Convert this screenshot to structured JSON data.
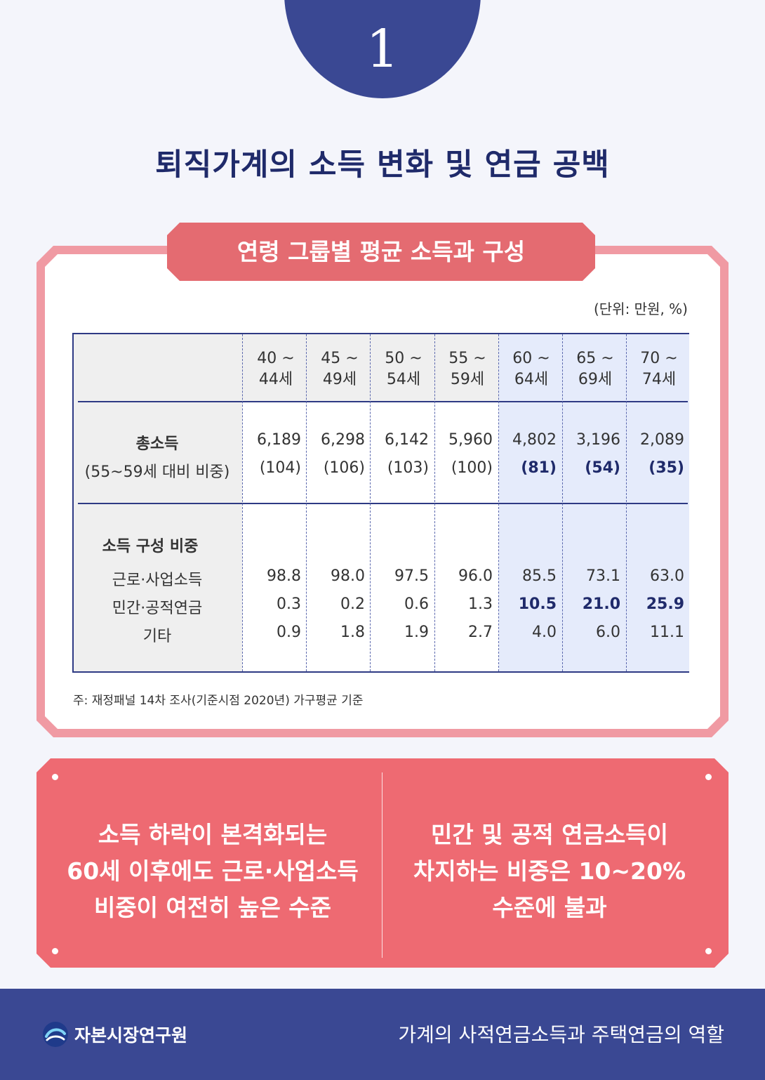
{
  "badge": {
    "number": "1"
  },
  "title": "퇴직가계의 소득 변화 및 연금 공백",
  "card": {
    "banner": "연령 그룹별 평균 소득과 구성",
    "unit": "(단위: 만원, %)",
    "table": {
      "columns": [
        [
          "40 ~",
          "44세"
        ],
        [
          "45 ~",
          "49세"
        ],
        [
          "50 ~",
          "54세"
        ],
        [
          "55 ~",
          "59세"
        ],
        [
          "60 ~",
          "64세"
        ],
        [
          "65 ~",
          "69세"
        ],
        [
          "70 ~",
          "74세"
        ]
      ],
      "total_label": "총소득",
      "ratio_label": "(55~59세 대비 비중)",
      "total": [
        "6,189",
        "6,298",
        "6,142",
        "5,960",
        "4,802",
        "3,196",
        "2,089"
      ],
      "ratio": [
        "(104)",
        "(106)",
        "(103)",
        "(100)",
        "(81)",
        "(54)",
        "(35)"
      ],
      "comp_label": "소득 구성 비중",
      "rows": [
        {
          "label": "근로·사업소득",
          "values": [
            "98.8",
            "98.0",
            "97.5",
            "96.0",
            "85.5",
            "73.1",
            "63.0"
          ]
        },
        {
          "label": "민간·공적연금",
          "values": [
            "0.3",
            "0.2",
            "0.6",
            "1.3",
            "10.5",
            "21.0",
            "25.9"
          ]
        },
        {
          "label": "기타",
          "values": [
            "0.9",
            "1.8",
            "1.9",
            "2.7",
            "4.0",
            "6.0",
            "11.1"
          ]
        }
      ]
    },
    "note": "주: 재정패널 14차 조사(기준시점 2020년) 가구평균 기준"
  },
  "findings": {
    "left": [
      "소득 하락이 본격화되는",
      "60세 이후에도 근로·사업소득",
      "비중이 여전히 높은 수준"
    ],
    "right": [
      "민간 및 공적 연금소득이",
      "차지하는 비중은 10~20%",
      "수준에 불과"
    ]
  },
  "footer": {
    "logo_icon": "kcmi-logo-icon",
    "org": "자본시장연구원",
    "report_title": "가계의 사적연금소득과 주택연금의 역할"
  },
  "colors": {
    "navy": "#3a4893",
    "coral": "#ee6a72",
    "pink_border": "#f09aa3",
    "highlight_blue": "#e5ebfb"
  }
}
